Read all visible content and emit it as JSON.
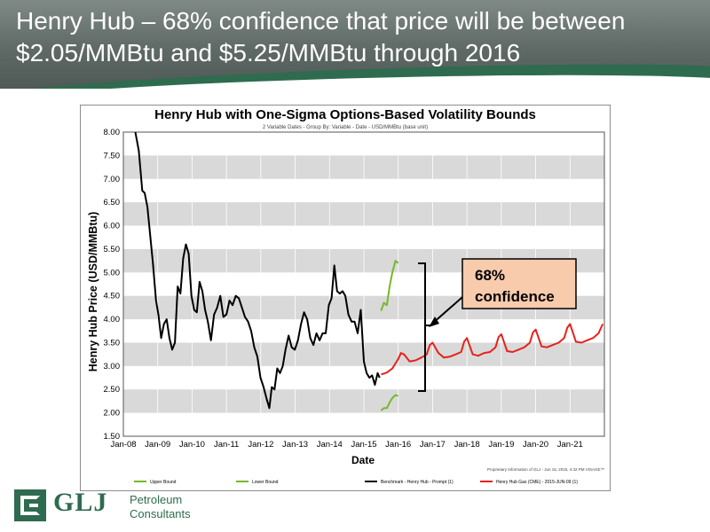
{
  "slide": {
    "title": "Henry Hub – 68% confidence that price will be between $2.05/MMBtu and $5.25/MMBtu through 2016"
  },
  "logo": {
    "mark": "GLJ",
    "line1": "Petroleum",
    "line2": "Consultants",
    "color": "#2f6b4f"
  },
  "callout": {
    "line1": "68%",
    "line2": "confidence",
    "fill": "#f8cbad",
    "border": "#000000"
  },
  "chart_data": {
    "type": "line",
    "title": "Henry Hub with One-Sigma Options-Based Volatility Bounds",
    "subtitle": "2 Variable Dates - Group By: Variable - Date - USD/MMBtu (base unit)",
    "xlabel": "Date",
    "ylabel": "Henry Hub Price (USD/MMBtu)",
    "ylim": [
      1.5,
      8.0
    ],
    "xlim": [
      2008.0,
      2022.0
    ],
    "y_ticks": [
      "1.50",
      "2.00",
      "2.50",
      "3.00",
      "3.50",
      "4.00",
      "4.50",
      "5.00",
      "5.50",
      "6.00",
      "6.50",
      "7.00",
      "7.50",
      "8.00"
    ],
    "x_ticks": [
      "Jan-08",
      "Jan-09",
      "Jan-10",
      "Jan-11",
      "Jan-12",
      "Jan-13",
      "Jan-14",
      "Jan-15",
      "Jan-16",
      "Jan-17",
      "Jan-18",
      "Jan-19",
      "Jan-20",
      "Jan-21"
    ],
    "grid": "horizontal bands",
    "provenance": "Proprietary Information of GLJ - Jun 15, 2015, 4:42 PM  VISAGE™",
    "legend_placement": "bottom",
    "series": [
      {
        "name": "Upper Bound",
        "color": "#76b82a",
        "x": [
          2015.5,
          2015.58,
          2015.67,
          2015.75,
          2015.83,
          2015.92,
          2016.0
        ],
        "y": [
          4.18,
          4.35,
          4.3,
          4.7,
          5.0,
          5.25,
          5.2
        ]
      },
      {
        "name": "Lower Bound",
        "color": "#76b82a",
        "x": [
          2015.5,
          2015.58,
          2015.67,
          2015.75,
          2015.83,
          2015.92,
          2016.0
        ],
        "y": [
          2.05,
          2.1,
          2.1,
          2.22,
          2.32,
          2.38,
          2.36
        ]
      },
      {
        "name": "Benchmark - Henry Hub - Prompt",
        "suffix": "(1)",
        "color": "#000000",
        "x": [
          2008.35,
          2008.45,
          2008.55,
          2008.62,
          2008.7,
          2008.78,
          2008.86,
          2008.95,
          2009.02,
          2009.1,
          2009.18,
          2009.26,
          2009.34,
          2009.42,
          2009.5,
          2009.58,
          2009.66,
          2009.74,
          2009.82,
          2009.9,
          2009.98,
          2010.06,
          2010.14,
          2010.22,
          2010.3,
          2010.38,
          2010.46,
          2010.55,
          2010.64,
          2010.73,
          2010.82,
          2010.91,
          2011.0,
          2011.09,
          2011.18,
          2011.27,
          2011.36,
          2011.45,
          2011.54,
          2011.63,
          2011.72,
          2011.81,
          2011.9,
          2011.99,
          2012.08,
          2012.17,
          2012.25,
          2012.32,
          2012.4,
          2012.48,
          2012.56,
          2012.64,
          2012.72,
          2012.81,
          2012.9,
          2012.99,
          2013.08,
          2013.17,
          2013.26,
          2013.35,
          2013.44,
          2013.53,
          2013.62,
          2013.71,
          2013.8,
          2013.89,
          2013.98,
          2014.06,
          2014.14,
          2014.22,
          2014.3,
          2014.38,
          2014.46,
          2014.55,
          2014.64,
          2014.73,
          2014.82,
          2014.91,
          2015.0,
          2015.08,
          2015.16,
          2015.24,
          2015.32,
          2015.4,
          2015.46
        ],
        "y": [
          8.0,
          7.6,
          6.75,
          6.7,
          6.4,
          5.8,
          5.2,
          4.4,
          4.1,
          3.6,
          3.9,
          4.0,
          3.6,
          3.35,
          3.5,
          4.7,
          4.55,
          5.3,
          5.6,
          5.4,
          4.5,
          4.2,
          4.15,
          4.8,
          4.6,
          4.2,
          3.95,
          3.55,
          4.1,
          4.25,
          4.5,
          4.05,
          4.1,
          4.4,
          4.3,
          4.5,
          4.45,
          4.25,
          4.05,
          3.95,
          3.75,
          3.4,
          3.2,
          2.75,
          2.55,
          2.3,
          2.1,
          2.55,
          2.5,
          2.95,
          2.85,
          3.0,
          3.35,
          3.65,
          3.4,
          3.35,
          3.55,
          3.9,
          4.15,
          4.0,
          3.6,
          3.45,
          3.7,
          3.55,
          3.7,
          3.7,
          4.3,
          4.45,
          5.15,
          4.6,
          4.55,
          4.6,
          4.5,
          4.1,
          3.95,
          3.95,
          3.7,
          4.2,
          3.1,
          2.85,
          2.75,
          2.8,
          2.6,
          2.85,
          2.75
        ]
      },
      {
        "name": "Henry Hub Gas (CME) - 2015-JUN-09",
        "suffix": "(1)",
        "color": "#e8211a",
        "x": [
          2015.5,
          2015.67,
          2015.83,
          2016.0,
          2016.08,
          2016.17,
          2016.33,
          2016.5,
          2016.67,
          2016.83,
          2016.92,
          2017.0,
          2017.17,
          2017.33,
          2017.5,
          2017.67,
          2017.83,
          2017.92,
          2018.0,
          2018.17,
          2018.33,
          2018.5,
          2018.67,
          2018.83,
          2018.92,
          2019.0,
          2019.17,
          2019.33,
          2019.5,
          2019.67,
          2019.83,
          2019.92,
          2020.0,
          2020.17,
          2020.33,
          2020.5,
          2020.67,
          2020.83,
          2020.92,
          2021.0,
          2021.17,
          2021.33,
          2021.5,
          2021.67,
          2021.83,
          2021.95
        ],
        "y": [
          2.82,
          2.86,
          2.95,
          3.15,
          3.28,
          3.25,
          3.1,
          3.12,
          3.18,
          3.25,
          3.45,
          3.5,
          3.28,
          3.18,
          3.2,
          3.25,
          3.3,
          3.52,
          3.6,
          3.25,
          3.22,
          3.28,
          3.3,
          3.4,
          3.62,
          3.68,
          3.32,
          3.3,
          3.35,
          3.4,
          3.5,
          3.72,
          3.78,
          3.42,
          3.4,
          3.45,
          3.5,
          3.6,
          3.82,
          3.9,
          3.52,
          3.5,
          3.55,
          3.6,
          3.7,
          3.9
        ]
      }
    ]
  }
}
